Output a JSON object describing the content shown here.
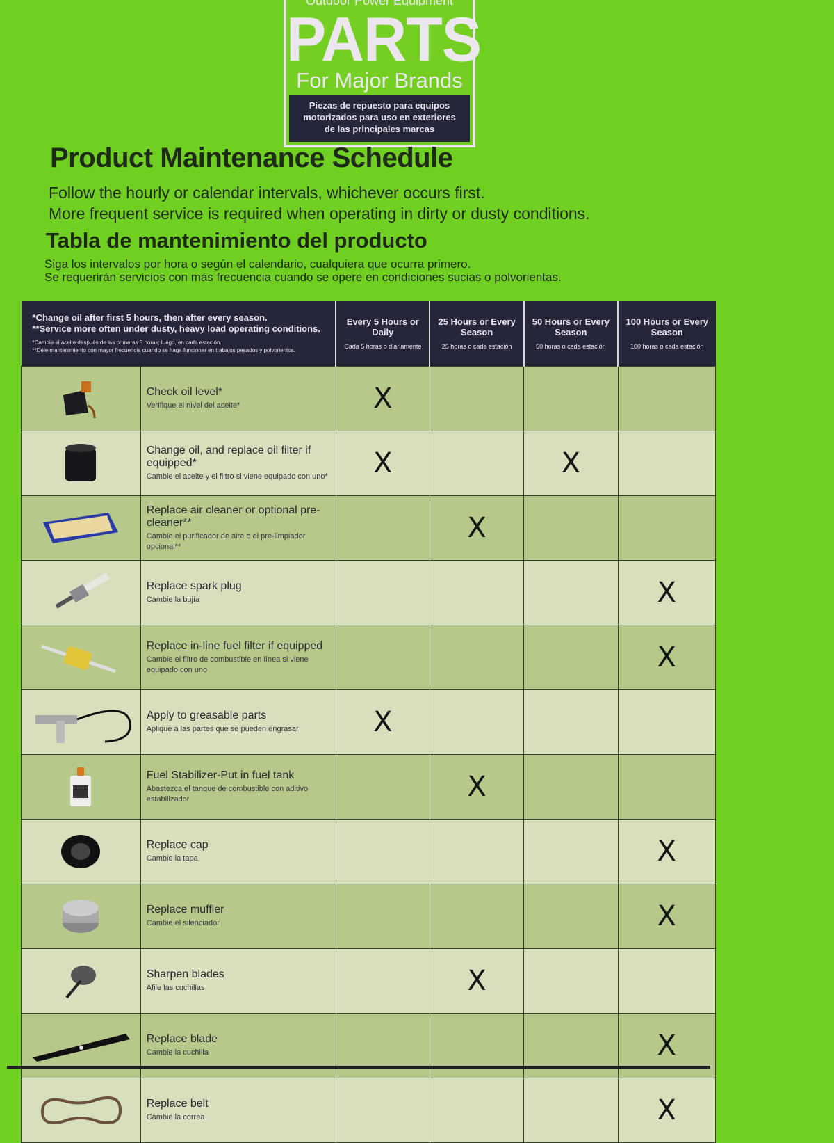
{
  "logo": {
    "top_line": "Outdoor Power Equipment",
    "title": "PARTS",
    "subtitle": "For Major Brands",
    "spanish": [
      "Piezas de repuesto para equipos",
      "motorizados para uso en exteriores",
      "de las principales marcas"
    ]
  },
  "heading_en": "Product Maintenance Schedule",
  "intro_en": [
    "Follow the hourly or calendar intervals, whichever occurs first.",
    "More frequent service is required when operating in dirty or dusty conditions."
  ],
  "heading_es": "Tabla de mantenimiento del producto",
  "intro_es": [
    "Siga los intervalos por hora o según el calendario, cualquiera que ocurra primero.",
    "Se requerirán servicios con más frecuencia cuando se opere en condiciones sucias o polvorientas."
  ],
  "table": {
    "notes_en": [
      "*Change oil after first 5 hours, then after every season.",
      "**Service more often under dusty, heavy load operating conditions."
    ],
    "notes_es": [
      "*Cambie el aceite después de las primeras 5 horas; luego, en cada estación.",
      "**Déle mantenimiento con mayor frecuencia cuando se haga funcionar en trabajos pesados y polvorientos."
    ],
    "columns": [
      {
        "en": "Every 5 Hours or Daily",
        "es": "Cada 5 horas o diariamente"
      },
      {
        "en": "25 Hours or Every Season",
        "es": "25 horas o cada estación"
      },
      {
        "en": "50 Hours or Every Season",
        "es": "50 horas o cada estación"
      },
      {
        "en": "100 Hours or Every Season",
        "es": "100 horas o cada estación"
      }
    ],
    "mark": "X",
    "rows": [
      {
        "icon": "oil-bottle-icon",
        "en": "Check oil level*",
        "es": "Verifique el nivel del aceite*",
        "marks": [
          true,
          false,
          false,
          false
        ]
      },
      {
        "icon": "oil-filter-icon",
        "en": "Change oil, and replace oil filter if equipped*",
        "es": "Cambie el aceite y el filtro si viene equipado con uno*",
        "marks": [
          true,
          false,
          true,
          false
        ]
      },
      {
        "icon": "air-filter-icon",
        "en": "Replace air cleaner or optional pre-cleaner**",
        "es": "Cambie el purificador de aire o el pre-limpiador opcional**",
        "marks": [
          false,
          true,
          false,
          false
        ]
      },
      {
        "icon": "spark-plug-icon",
        "en": "Replace spark plug",
        "es": "Cambie la bujía",
        "marks": [
          false,
          false,
          false,
          true
        ]
      },
      {
        "icon": "fuel-filter-icon",
        "en": "Replace in-line fuel filter if equipped",
        "es": "Cambie el filtro de combustible en línea si viene equipado con uno",
        "marks": [
          false,
          false,
          false,
          true
        ]
      },
      {
        "icon": "grease-gun-icon",
        "en": "Apply to greasable parts",
        "es": "Aplique a las partes que se pueden engrasar",
        "marks": [
          true,
          false,
          false,
          false
        ]
      },
      {
        "icon": "fuel-stabilizer-icon",
        "en": "Fuel Stabilizer-Put in fuel tank",
        "es": "Abastezca el tanque de combustible con aditivo estabilizador",
        "marks": [
          false,
          true,
          false,
          false
        ]
      },
      {
        "icon": "fuel-cap-icon",
        "en": "Replace cap",
        "es": "Cambie la tapa",
        "marks": [
          false,
          false,
          false,
          true
        ]
      },
      {
        "icon": "muffler-icon",
        "en": "Replace muffler",
        "es": "Cambie el silenciador",
        "marks": [
          false,
          false,
          false,
          true
        ]
      },
      {
        "icon": "blade-sharpener-icon",
        "en": "Sharpen blades",
        "es": "Afile las cuchillas",
        "marks": [
          false,
          true,
          false,
          false
        ]
      },
      {
        "icon": "mower-blade-icon",
        "en": "Replace blade",
        "es": "Cambie la cuchilla",
        "marks": [
          false,
          false,
          false,
          true
        ]
      },
      {
        "icon": "belt-icon",
        "en": "Replace belt",
        "es": "Cambie la correa",
        "marks": [
          false,
          false,
          false,
          true
        ]
      }
    ]
  }
}
